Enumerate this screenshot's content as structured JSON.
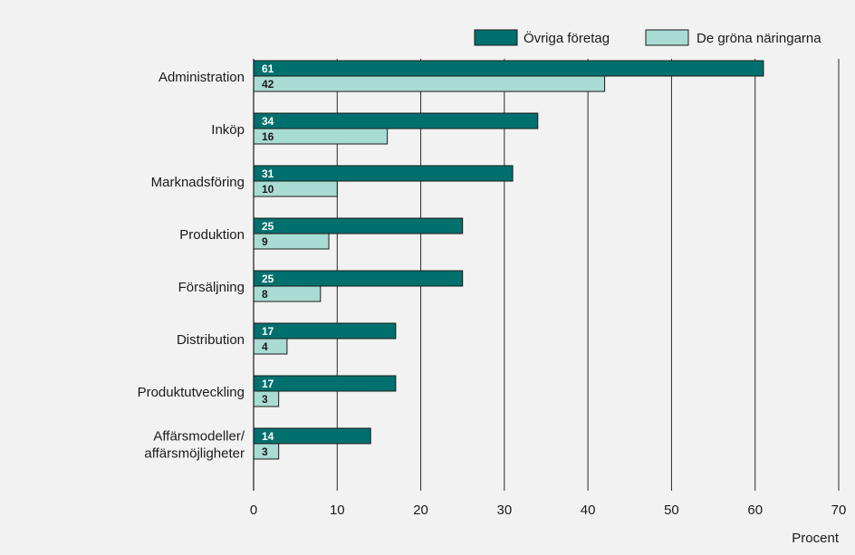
{
  "chart_data": {
    "type": "bar",
    "orientation": "horizontal",
    "categories": [
      "Administration",
      "Inköp",
      "Marknadsföring",
      "Produktion",
      "Försäljning",
      "Distribution",
      "Produktutveckling",
      "Affärsmodeller/ affärsmöjligheter"
    ],
    "category_lines": [
      [
        "Administration"
      ],
      [
        "Inköp"
      ],
      [
        "Marknadsföring"
      ],
      [
        "Produktion"
      ],
      [
        "Försäljning"
      ],
      [
        "Distribution"
      ],
      [
        "Produktutveckling"
      ],
      [
        "Affärsmodeller/",
        "affärsmöjligheter"
      ]
    ],
    "series": [
      {
        "name": "Övriga företag",
        "color": "#00706e",
        "label_color": "#ffffff",
        "values": [
          61,
          34,
          31,
          25,
          25,
          17,
          17,
          14
        ]
      },
      {
        "name": "De gröna näringarna",
        "color": "#a9dcd3",
        "label_color": "#1a1a1a",
        "values": [
          42,
          16,
          10,
          9,
          8,
          4,
          3,
          3
        ]
      }
    ],
    "xlim": [
      0,
      70
    ],
    "xticks": [
      0,
      10,
      20,
      30,
      40,
      50,
      60,
      70
    ],
    "xlabel": "Procent",
    "ylabel": "",
    "title": "",
    "grid": "vertical",
    "legend_position": "top-right",
    "background": "#f2f2f2"
  }
}
